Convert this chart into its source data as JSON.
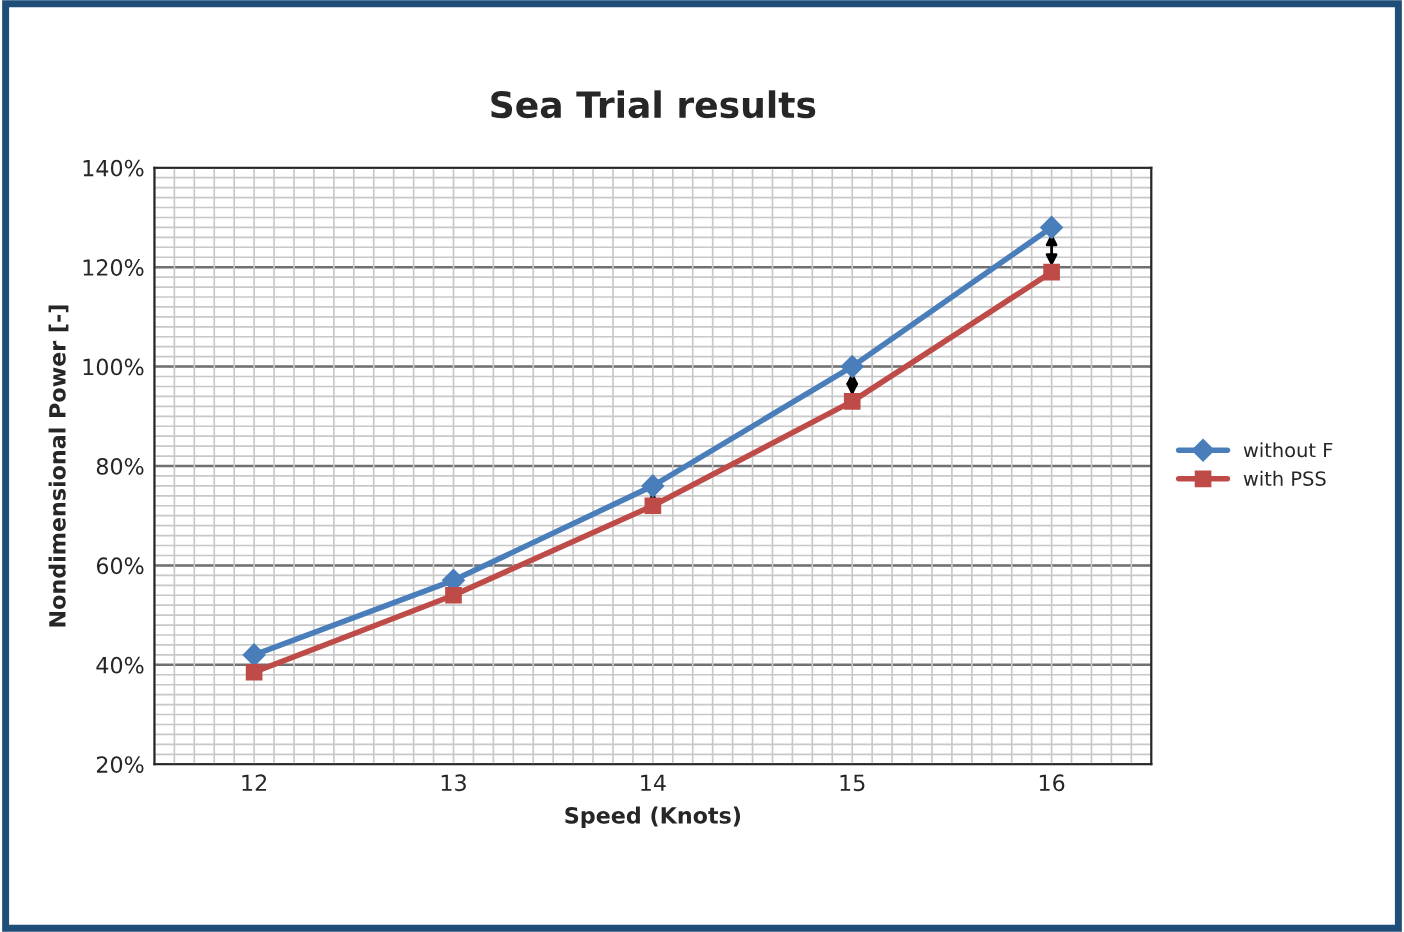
{
  "chart_data": {
    "type": "line",
    "title": "Sea Trial results",
    "xlabel": "Speed (Knots)",
    "ylabel": "Nondimensional Power [-]",
    "x": [
      12,
      13,
      14,
      15,
      16
    ],
    "xlim": [
      11.5,
      16.5
    ],
    "xticks": [
      12,
      13,
      14,
      15,
      16
    ],
    "ylim": [
      0.2,
      1.4
    ],
    "yticks": [
      {
        "value": 0.2,
        "label": "20%"
      },
      {
        "value": 0.4,
        "label": "40%"
      },
      {
        "value": 0.6,
        "label": "60%"
      },
      {
        "value": 0.8,
        "label": "80%"
      },
      {
        "value": 1.0,
        "label": "100%"
      },
      {
        "value": 1.2,
        "label": "120%"
      },
      {
        "value": 1.4,
        "label": "140%"
      }
    ],
    "series": [
      {
        "name": "without F",
        "color": "#4a7ebb",
        "marker": "diamond",
        "values": [
          0.42,
          0.57,
          0.76,
          1.0,
          1.28
        ]
      },
      {
        "name": "with PSS",
        "color": "#be4b48",
        "marker": "square",
        "values": [
          0.385,
          0.54,
          0.72,
          0.93,
          1.19
        ]
      }
    ],
    "grid": true,
    "legend": "right",
    "line_style": "solid"
  }
}
